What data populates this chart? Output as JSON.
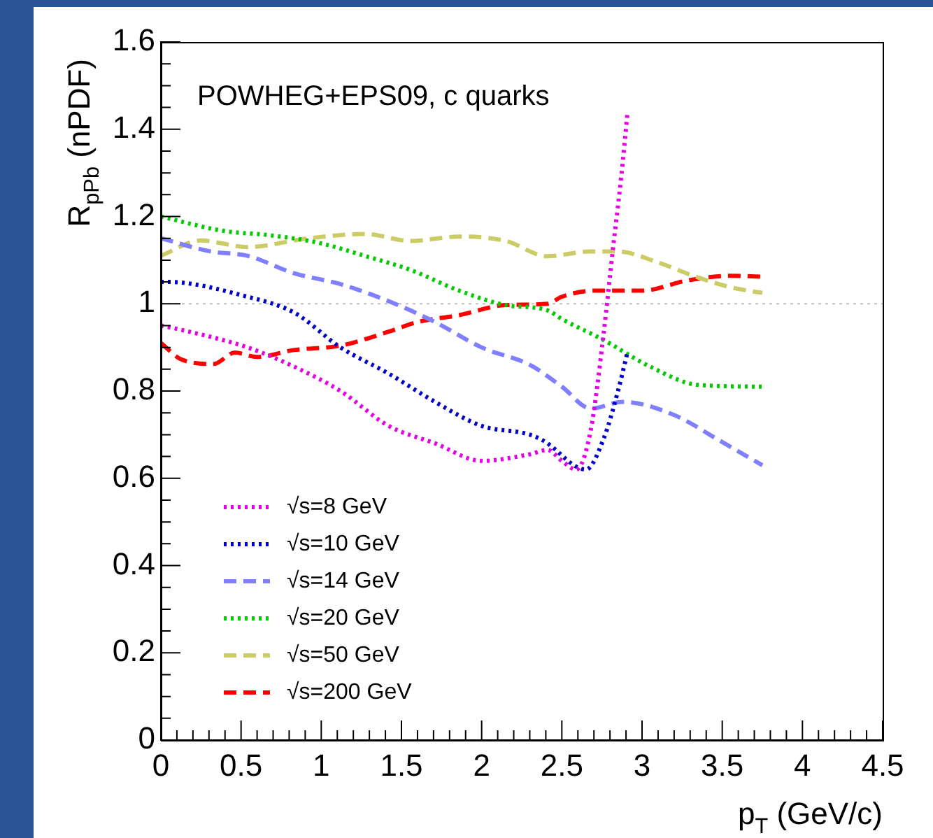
{
  "chart_data": {
    "type": "line",
    "xlabel": "p$_{T}$ (GeV/c)",
    "ylabel": "R$_{pPb}$ (nPDF)",
    "annotations": [
      "POWHEG+EPS09, c quarks"
    ],
    "xlim": [
      0,
      4.5
    ],
    "xticks": [
      0,
      0.5,
      1,
      1.5,
      2,
      2.5,
      3,
      3.5,
      4,
      4.5
    ],
    "ylim": [
      0,
      1.6
    ],
    "yticks": [
      0,
      0.2,
      0.4,
      0.6,
      0.8,
      1,
      1.2,
      1.4,
      1.6
    ],
    "legend": "bottom left",
    "marker": "none",
    "ref_lines": [
      {
        "axis": "y",
        "value": 1,
        "color": "#c0c0c0",
        "line_style": "dotted"
      }
    ],
    "series": [
      {
        "name": "√s=8 GeV",
        "color": "#e600e6",
        "line_style": "dotted",
        "x": [
          0,
          0.13,
          0.54,
          0.83,
          1.12,
          1.42,
          1.71,
          2.0,
          2.3,
          2.41,
          2.5,
          2.59,
          2.68,
          2.76,
          2.82,
          2.87,
          2.91
        ],
        "values": [
          0.95,
          0.94,
          0.9,
          0.856,
          0.8,
          0.72,
          0.68,
          0.64,
          0.655,
          0.665,
          0.64,
          0.62,
          0.71,
          0.93,
          1.13,
          1.29,
          1.44
        ]
      },
      {
        "name": "√s=10 GeV",
        "color": "#0000cc",
        "line_style": "dotted",
        "x": [
          0,
          0.04,
          0.54,
          0.83,
          1.12,
          1.42,
          1.71,
          2.0,
          2.3,
          2.39,
          2.65,
          2.76,
          2.85,
          2.91
        ],
        "values": [
          1.05,
          1.05,
          1.016,
          0.98,
          0.9,
          0.84,
          0.775,
          0.72,
          0.7,
          0.685,
          0.62,
          0.69,
          0.8,
          0.89
        ]
      },
      {
        "name": "√s=14 GeV",
        "color": "#7f7fff",
        "line_style": "dashed",
        "x": [
          0,
          0.31,
          0.54,
          0.83,
          1.12,
          1.42,
          1.71,
          2.0,
          2.3,
          2.5,
          2.68,
          2.88,
          3.2,
          3.49,
          3.75
        ],
        "values": [
          1.15,
          1.12,
          1.11,
          1.07,
          1.045,
          1.006,
          0.958,
          0.9,
          0.86,
          0.81,
          0.76,
          0.775,
          0.745,
          0.685,
          0.63
        ]
      },
      {
        "name": "√s=20 GeV",
        "color": "#00cc00",
        "line_style": "dotted",
        "x": [
          0,
          0.39,
          0.68,
          0.98,
          1.27,
          1.56,
          1.86,
          2.15,
          2.41,
          2.5,
          2.76,
          3.05,
          3.35,
          3.75
        ],
        "values": [
          1.2,
          1.167,
          1.157,
          1.14,
          1.11,
          1.077,
          1.03,
          0.997,
          0.985,
          0.965,
          0.917,
          0.856,
          0.814,
          0.81
        ]
      },
      {
        "name": "√s=50 GeV",
        "color": "#cccc66",
        "line_style": "dashed",
        "x": [
          0,
          0.25,
          0.54,
          0.92,
          1.27,
          1.56,
          1.86,
          2.15,
          2.41,
          2.68,
          2.85,
          3.09,
          3.32,
          3.55,
          3.75
        ],
        "values": [
          1.11,
          1.145,
          1.13,
          1.15,
          1.16,
          1.144,
          1.154,
          1.144,
          1.109,
          1.12,
          1.12,
          1.096,
          1.064,
          1.038,
          1.025
        ]
      },
      {
        "name": "√s=200 GeV",
        "color": "#ff0000",
        "line_style": "dashed",
        "x": [
          0,
          0.13,
          0.33,
          0.46,
          0.6,
          0.83,
          1.12,
          1.42,
          1.6,
          1.86,
          2.15,
          2.41,
          2.5,
          2.7,
          3.0,
          3.29,
          3.55,
          3.75
        ],
        "values": [
          0.91,
          0.872,
          0.862,
          0.888,
          0.878,
          0.894,
          0.904,
          0.936,
          0.958,
          0.974,
          0.997,
          1.0,
          1.016,
          1.03,
          1.03,
          1.054,
          1.064,
          1.062
        ]
      }
    ]
  }
}
